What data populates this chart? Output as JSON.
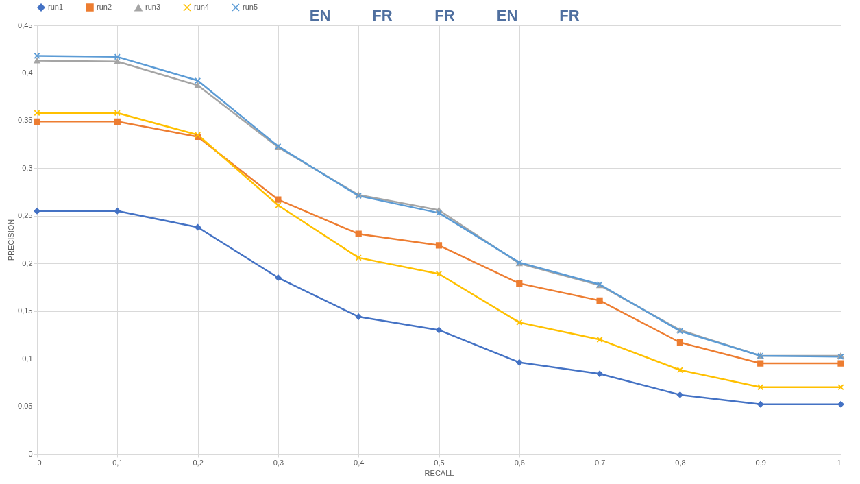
{
  "chart_data": {
    "type": "line",
    "xlabel": "RECALL",
    "ylabel": "PRECISION",
    "x": [
      0,
      0.1,
      0.2,
      0.3,
      0.4,
      0.5,
      0.6,
      0.7,
      0.8,
      0.9,
      1
    ],
    "xlim": [
      0,
      1
    ],
    "xticks": [
      0,
      {
        "value": 0.1,
        "label": "0,1"
      },
      {
        "value": 0.2,
        "label": "0,2"
      },
      {
        "value": 0.3,
        "label": "0,3"
      },
      {
        "value": 0.4,
        "label": "0,4"
      },
      {
        "value": 0.5,
        "label": "0,5"
      },
      {
        "value": 0.6,
        "label": "0,6"
      },
      {
        "value": 0.7,
        "label": "0,7"
      },
      {
        "value": 0.8,
        "label": "0,8"
      },
      {
        "value": 0.9,
        "label": "0,9"
      },
      1
    ],
    "ylim": [
      0,
      0.45
    ],
    "yticks": [
      0,
      {
        "value": 0.05,
        "label": "0,05"
      },
      {
        "value": 0.1,
        "label": "0,1"
      },
      {
        "value": 0.15,
        "label": "0,15"
      },
      {
        "value": 0.2,
        "label": "0,2"
      },
      {
        "value": 0.25,
        "label": "0,25"
      },
      {
        "value": 0.3,
        "label": "0,3"
      },
      {
        "value": 0.35,
        "label": "0,35"
      },
      {
        "value": 0.4,
        "label": "0,4"
      },
      {
        "value": 0.45,
        "label": "0,45"
      }
    ],
    "grid": true,
    "legend": "top",
    "line_style": "solid",
    "series": [
      {
        "name": "run1",
        "color": "#4472c4",
        "marker": "diamond",
        "values": [
          0.255,
          0.255,
          0.238,
          0.185,
          0.144,
          0.13,
          0.096,
          0.084,
          0.062,
          0.052,
          0.052
        ]
      },
      {
        "name": "run2",
        "color": "#ed7d31",
        "marker": "square",
        "values": [
          0.349,
          0.349,
          0.333,
          0.267,
          0.231,
          0.219,
          0.179,
          0.161,
          0.117,
          0.095,
          0.095
        ]
      },
      {
        "name": "run3",
        "color": "#a5a5a5",
        "marker": "triangle",
        "values": [
          0.413,
          0.412,
          0.387,
          0.322,
          0.272,
          0.256,
          0.2,
          0.177,
          0.13,
          0.103,
          0.103
        ]
      },
      {
        "name": "run4",
        "color": "#ffc000",
        "marker": "cross",
        "values": [
          0.358,
          0.358,
          0.335,
          0.261,
          0.206,
          0.189,
          0.138,
          0.12,
          0.088,
          0.07,
          0.07
        ]
      },
      {
        "name": "run5",
        "color": "#5b9bd5",
        "marker": "cross",
        "values": [
          0.418,
          0.417,
          0.392,
          0.323,
          0.271,
          0.253,
          0.201,
          0.178,
          0.129,
          0.103,
          0.102
        ]
      }
    ],
    "annotations": [
      "EN",
      "FR",
      "FR",
      "EN",
      "FR"
    ]
  }
}
